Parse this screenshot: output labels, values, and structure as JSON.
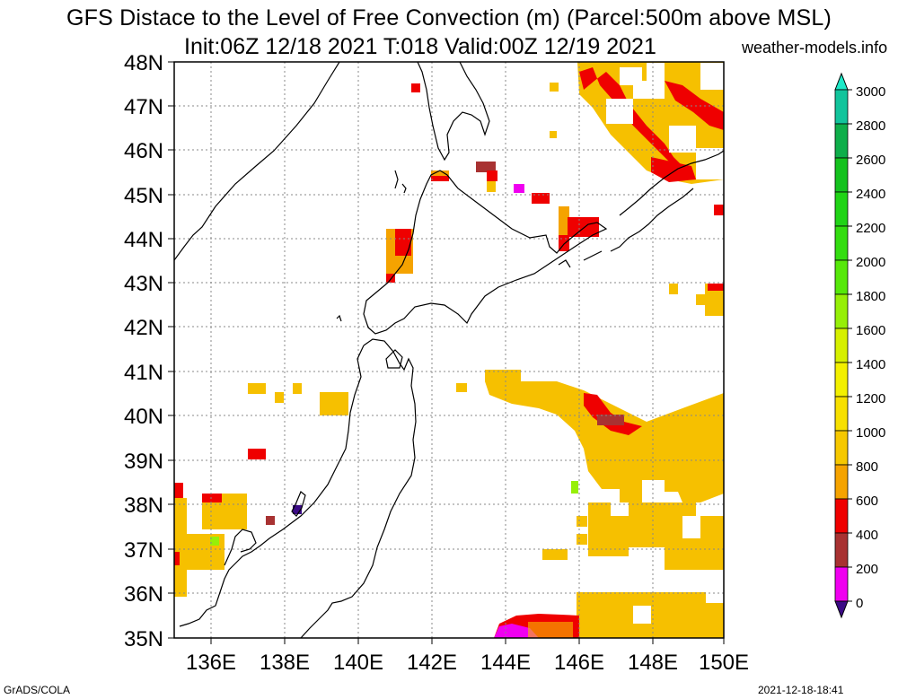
{
  "header": {
    "title_line1": "GFS Distace to the Level of Free Convection (m) (Parcel:500m above MSL)",
    "title_line2": "Init:06Z 12/18 2021 T:018 Valid:00Z 12/19 2021",
    "site": "weather-models.info"
  },
  "map": {
    "lon_labels": [
      "136E",
      "138E",
      "140E",
      "142E",
      "144E",
      "146E",
      "148E",
      "150E"
    ],
    "lat_labels": [
      "48N",
      "47N",
      "46N",
      "45N",
      "44N",
      "43N",
      "42N",
      "41N",
      "40N",
      "39N",
      "38N",
      "37N",
      "36N",
      "35N"
    ]
  },
  "colorbar": {
    "labels": [
      "3000",
      "2800",
      "2600",
      "2400",
      "2200",
      "2000",
      "1800",
      "1600",
      "1400",
      "1200",
      "1000",
      "800",
      "600",
      "400",
      "200",
      "0"
    ],
    "colors": [
      "#1de9c8",
      "#12c49c",
      "#0eae4a",
      "#14c21e",
      "#20d416",
      "#33dd10",
      "#56e80a",
      "#96ef08",
      "#d6f000",
      "#f3f000",
      "#f7e000",
      "#f6c800",
      "#f5a300",
      "#ef0000",
      "#a83232",
      "#f000f0",
      "#3b0a85"
    ]
  },
  "footer": {
    "left": "GrADS/COLA",
    "right": "2021-12-18-18:41"
  }
}
